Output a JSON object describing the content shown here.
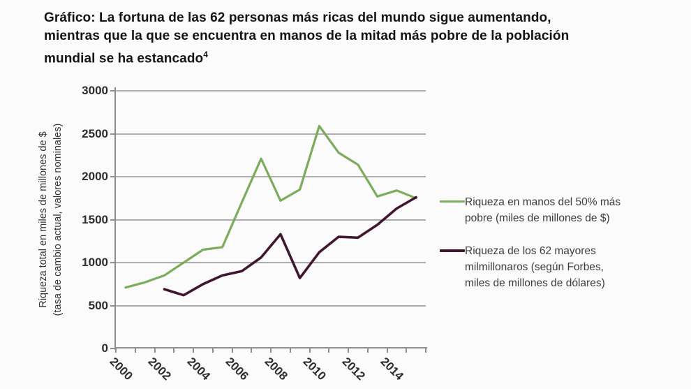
{
  "title": {
    "line1": "Gráfico: La fortuna de las 62 personas más ricas del mundo sigue aumentando,",
    "line2": "mientras que la que se encuentra en manos de la mitad más pobre de la población",
    "line3": "mundial se ha estancado",
    "footnote_marker": "4"
  },
  "chart_data": {
    "type": "line",
    "title": "La fortuna de las 62 personas más ricas del mundo sigue aumentando, mientras que la que se encuentra en manos de la mitad más pobre de la población mundial se ha estancado",
    "ylabel_line1": "Riqueza total en miles de millones de $",
    "ylabel_line2": "(tasa de cambio actual, valores nominales)",
    "xlabel": "",
    "ylim": [
      0,
      3000
    ],
    "ytick_interval": 500,
    "y_ticks": [
      0,
      500,
      1000,
      1500,
      2000,
      2500,
      3000
    ],
    "x_min": 2000,
    "x_max": 2015,
    "x_tick_labels": [
      "2000",
      "2002",
      "2004",
      "2006",
      "2008",
      "2010",
      "2012",
      "2014"
    ],
    "grid": "horizontal",
    "legend_position": "right",
    "series": [
      {
        "id": "bottom50",
        "name": "Riqueza en manos del 50% más pobre (miles de millones de $)",
        "legend_lines": [
          "Riqueza en manos del 50% más",
          "pobre (miles de millones de $)"
        ],
        "color": "#7CAB5C",
        "x": [
          2000,
          2001,
          2002,
          2003,
          2004,
          2005,
          2006,
          2007,
          2008,
          2009,
          2010,
          2011,
          2012,
          2013,
          2014,
          2015
        ],
        "values": [
          710,
          770,
          850,
          1000,
          1150,
          1180,
          1700,
          2210,
          1720,
          1850,
          2590,
          2280,
          2140,
          1770,
          1840,
          1750
        ]
      },
      {
        "id": "top62",
        "name": "Riqueza de los 62 mayores milmillonaros (según Forbes, miles de millones de dólares)",
        "legend_lines": [
          "Riqueza de los 62 mayores",
          "milmillonaros (según Forbes,",
          "miles de millones de dólares)"
        ],
        "color": "#41162F",
        "x": [
          2002,
          2003,
          2004,
          2005,
          2006,
          2007,
          2008,
          2009,
          2010,
          2011,
          2012,
          2013,
          2014,
          2015
        ],
        "values": [
          690,
          620,
          750,
          850,
          900,
          1060,
          1330,
          820,
          1120,
          1300,
          1290,
          1440,
          1630,
          1760
        ]
      }
    ]
  },
  "colors": {
    "gridline": "#acacac",
    "axis": "#8f8f8f",
    "tick_text": "#2d2d2d",
    "legend_text": "#3d3d3d",
    "title_text": "#141414",
    "background": "#fbfbfb"
  }
}
